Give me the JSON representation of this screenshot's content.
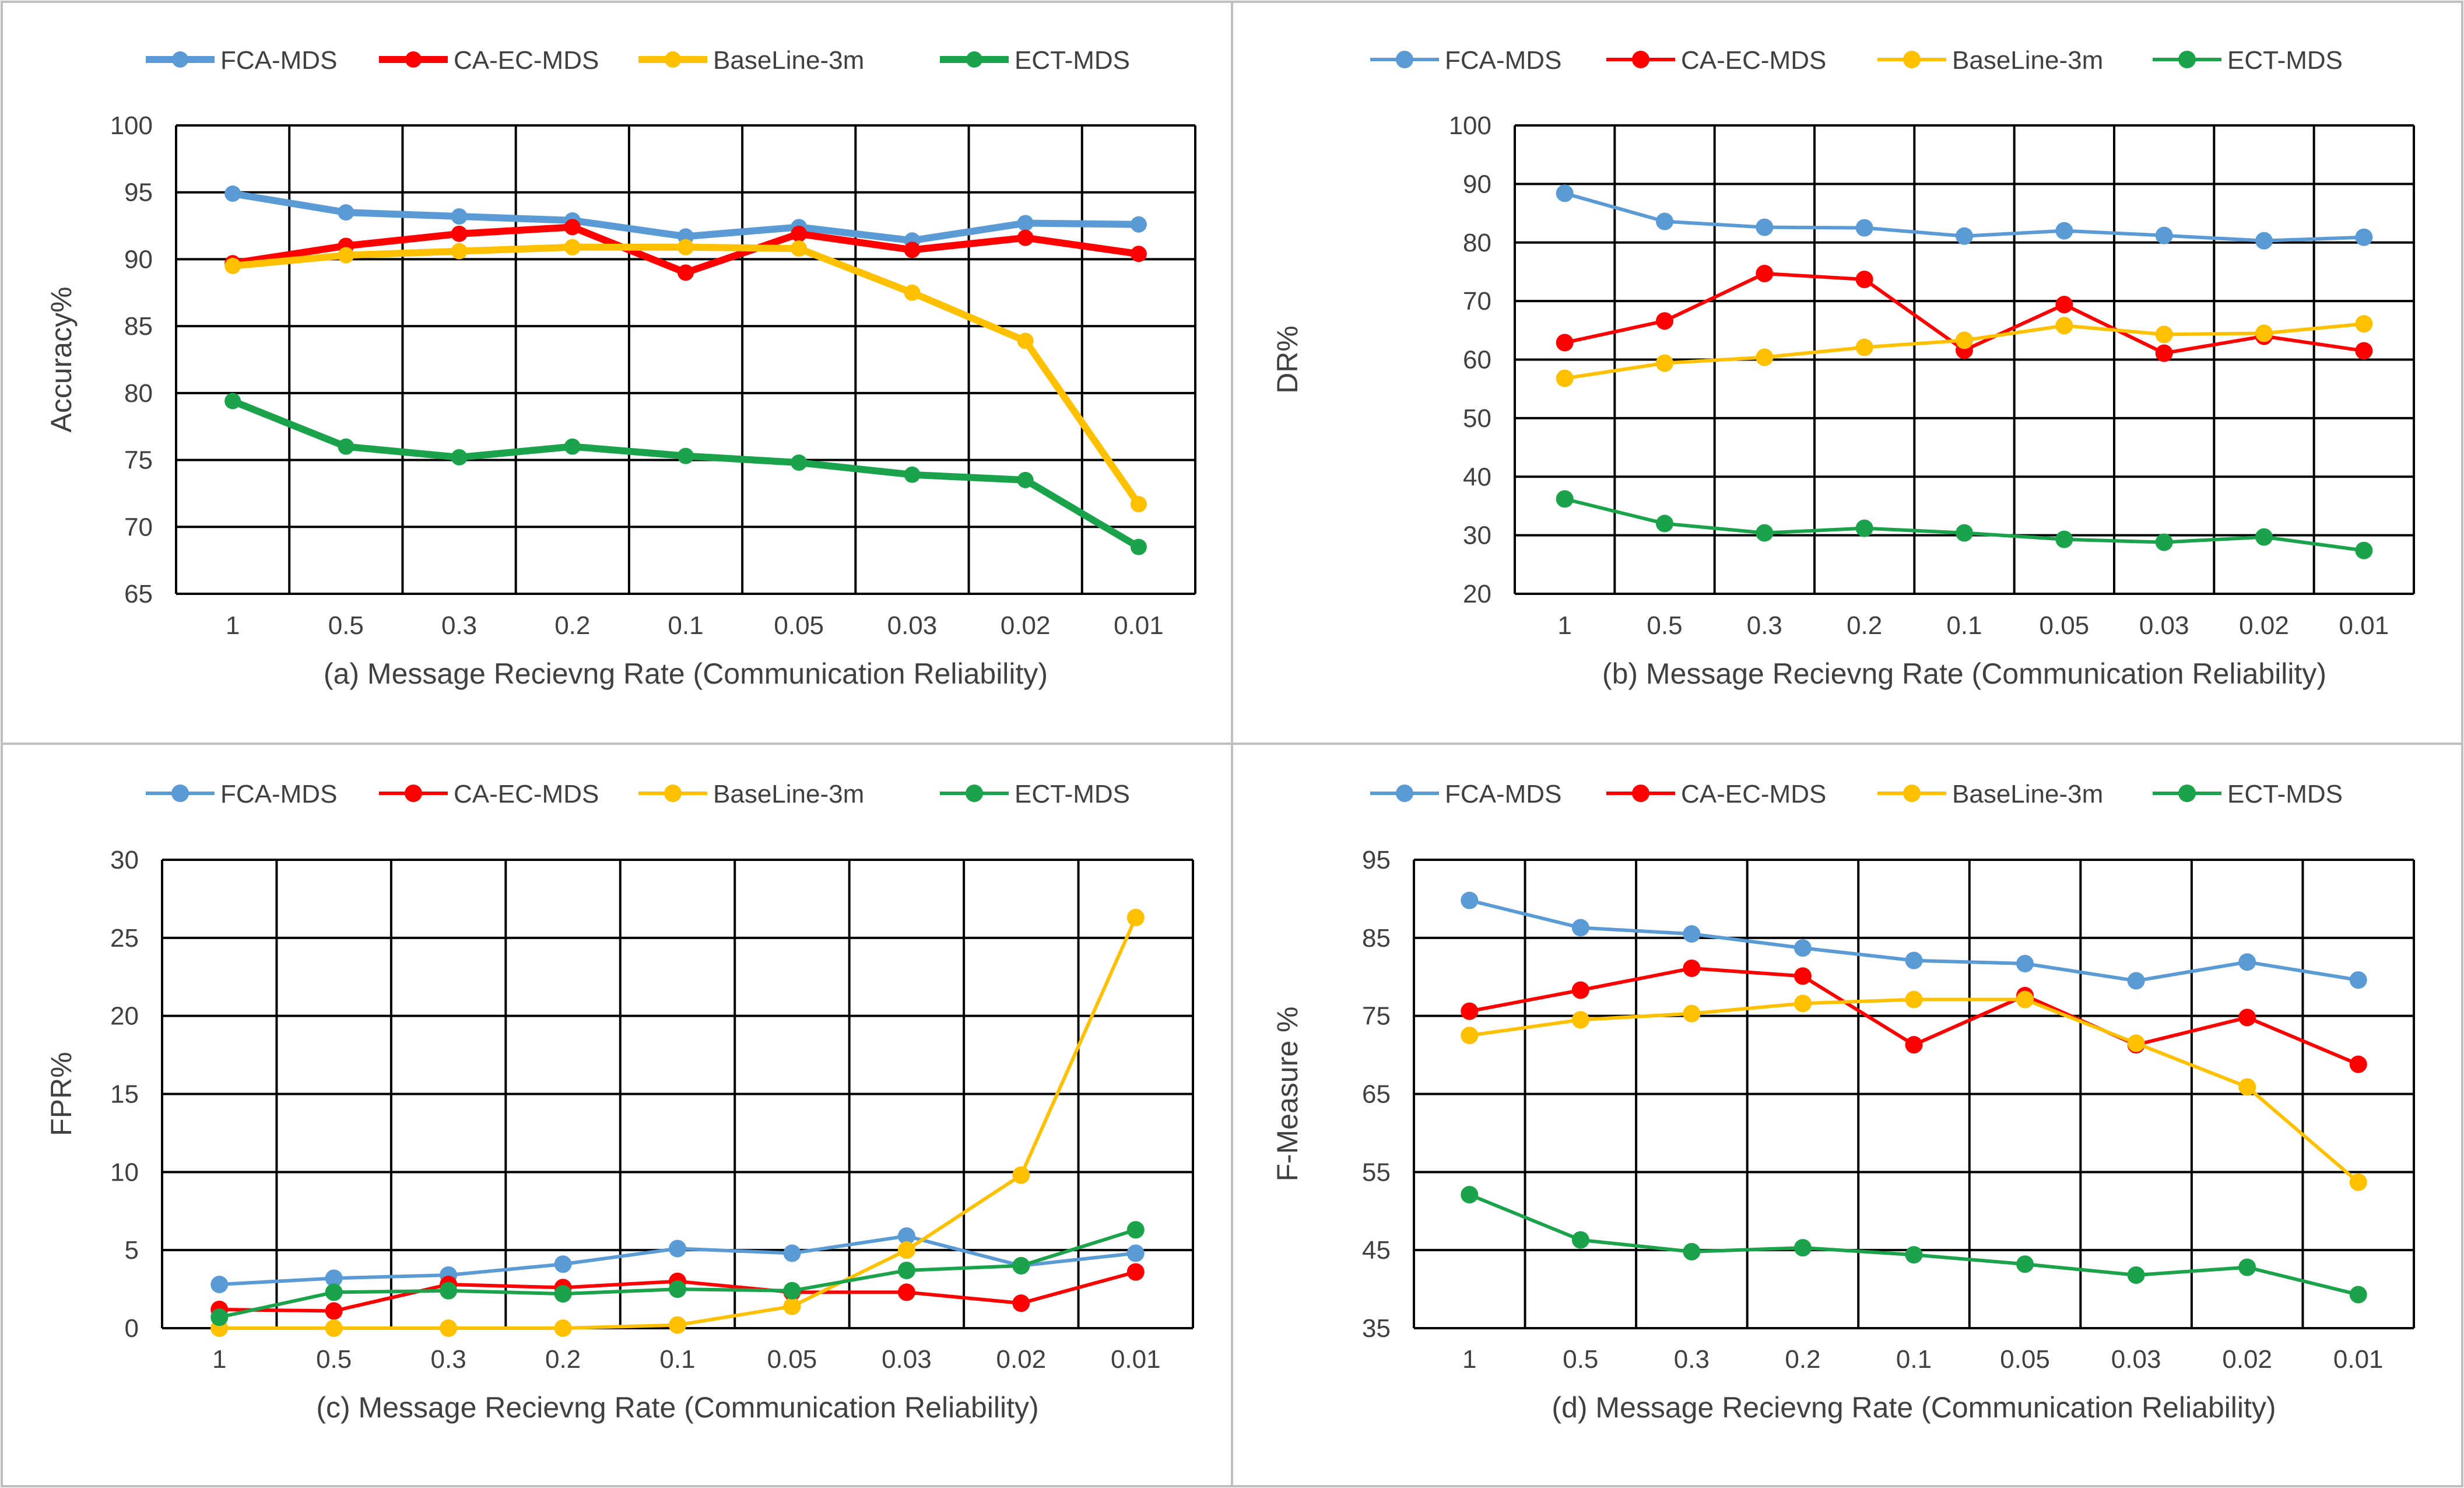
{
  "series_styles": [
    {
      "name": "FCA-MDS",
      "color": "#5B9BD5"
    },
    {
      "name": "CA-EC-MDS",
      "color": "#FF0000"
    },
    {
      "name": "BaseLine-3m",
      "color": "#FFC000"
    },
    {
      "name": "ECT-MDS",
      "color": "#1AA34A"
    }
  ],
  "chart_data": [
    {
      "type": "line",
      "id": "a",
      "categories": [
        "1",
        "0.5",
        "0.3",
        "0.2",
        "0.1",
        "0.05",
        "0.03",
        "0.02",
        "0.01"
      ],
      "xlabel": "(a) Message Recievng Rate (Communication Reliability)",
      "ylabel": "Accuracy%",
      "ylim": [
        65,
        100
      ],
      "yticks": [
        "65",
        "70",
        "75",
        "80",
        "85",
        "90",
        "95",
        "100"
      ],
      "grid": true,
      "legend": "top",
      "series": [
        {
          "name": "FCA-MDS",
          "values": [
            94.9,
            93.5,
            93.2,
            92.9,
            91.7,
            92.4,
            91.4,
            92.7,
            92.6
          ]
        },
        {
          "name": "CA-EC-MDS",
          "values": [
            89.7,
            91.0,
            91.9,
            92.4,
            89.0,
            91.9,
            90.7,
            91.6,
            90.4
          ]
        },
        {
          "name": "BaseLine-3m",
          "values": [
            89.5,
            90.3,
            90.6,
            90.9,
            90.9,
            90.8,
            87.5,
            83.9,
            71.7
          ]
        },
        {
          "name": "ECT-MDS",
          "values": [
            79.4,
            76.0,
            75.2,
            76.0,
            75.3,
            74.8,
            73.9,
            73.5,
            68.5
          ]
        }
      ]
    },
    {
      "type": "line",
      "id": "b",
      "categories": [
        "1",
        "0.5",
        "0.3",
        "0.2",
        "0.1",
        "0.05",
        "0.03",
        "0.02",
        "0.01"
      ],
      "xlabel": "(b) Message Recievng Rate (Communication Reliability)",
      "ylabel": "DR%",
      "ylim": [
        20,
        100
      ],
      "yticks": [
        "20",
        "30",
        "40",
        "50",
        "60",
        "70",
        "80",
        "90",
        "100"
      ],
      "grid": true,
      "legend": "top",
      "series": [
        {
          "name": "FCA-MDS",
          "values": [
            88.4,
            83.6,
            82.6,
            82.5,
            81.1,
            82.0,
            81.2,
            80.3,
            80.9
          ]
        },
        {
          "name": "CA-EC-MDS",
          "values": [
            62.9,
            66.6,
            74.7,
            73.7,
            61.6,
            69.4,
            61.1,
            64.0,
            61.5
          ]
        },
        {
          "name": "BaseLine-3m",
          "values": [
            56.8,
            59.4,
            60.4,
            62.1,
            63.3,
            65.8,
            64.3,
            64.5,
            66.1
          ]
        },
        {
          "name": "ECT-MDS",
          "values": [
            36.2,
            32.0,
            30.4,
            31.2,
            30.4,
            29.3,
            28.8,
            29.7,
            27.4
          ]
        }
      ]
    },
    {
      "type": "line",
      "id": "c",
      "categories": [
        "1",
        "0.5",
        "0.3",
        "0.2",
        "0.1",
        "0.05",
        "0.03",
        "0.02",
        "0.01"
      ],
      "xlabel": "(c) Message Recievng Rate (Communication Reliability)",
      "ylabel": "FPR%",
      "ylim": [
        0,
        30
      ],
      "yticks": [
        "0",
        "5",
        "10",
        "15",
        "20",
        "25",
        "30"
      ],
      "grid": true,
      "legend": "top",
      "series": [
        {
          "name": "FCA-MDS",
          "values": [
            2.8,
            3.2,
            3.4,
            4.1,
            5.1,
            4.8,
            5.9,
            4.0,
            4.8
          ]
        },
        {
          "name": "CA-EC-MDS",
          "values": [
            1.2,
            1.1,
            2.8,
            2.6,
            3.0,
            2.3,
            2.3,
            1.6,
            3.6
          ]
        },
        {
          "name": "BaseLine-3m",
          "values": [
            0.0,
            0.0,
            0.0,
            0.0,
            0.2,
            1.4,
            5.0,
            9.8,
            26.3
          ]
        },
        {
          "name": "ECT-MDS",
          "values": [
            0.7,
            2.3,
            2.4,
            2.2,
            2.5,
            2.4,
            3.7,
            4.0,
            6.3
          ]
        }
      ]
    },
    {
      "type": "line",
      "id": "d",
      "categories": [
        "1",
        "0.5",
        "0.3",
        "0.2",
        "0.1",
        "0.05",
        "0.03",
        "0.02",
        "0.01"
      ],
      "xlabel": "(d)  Message Recievng Rate (Communication Reliability)",
      "ylabel": "F-Measure %",
      "ylim": [
        35,
        95
      ],
      "yticks": [
        "35",
        "45",
        "55",
        "65",
        "75",
        "85",
        "95"
      ],
      "grid": true,
      "legend": "top",
      "series": [
        {
          "name": "FCA-MDS",
          "values": [
            89.8,
            86.3,
            85.5,
            83.7,
            82.1,
            81.7,
            79.5,
            81.9,
            79.6
          ]
        },
        {
          "name": "CA-EC-MDS",
          "values": [
            75.6,
            78.3,
            81.1,
            80.1,
            71.3,
            77.6,
            71.3,
            74.8,
            68.8
          ]
        },
        {
          "name": "BaseLine-3m",
          "values": [
            72.5,
            74.5,
            75.3,
            76.6,
            77.1,
            77.1,
            71.5,
            65.9,
            53.7
          ]
        },
        {
          "name": "ECT-MDS",
          "values": [
            52.1,
            46.3,
            44.8,
            45.3,
            44.4,
            43.2,
            41.8,
            42.8,
            39.3
          ]
        }
      ]
    }
  ]
}
